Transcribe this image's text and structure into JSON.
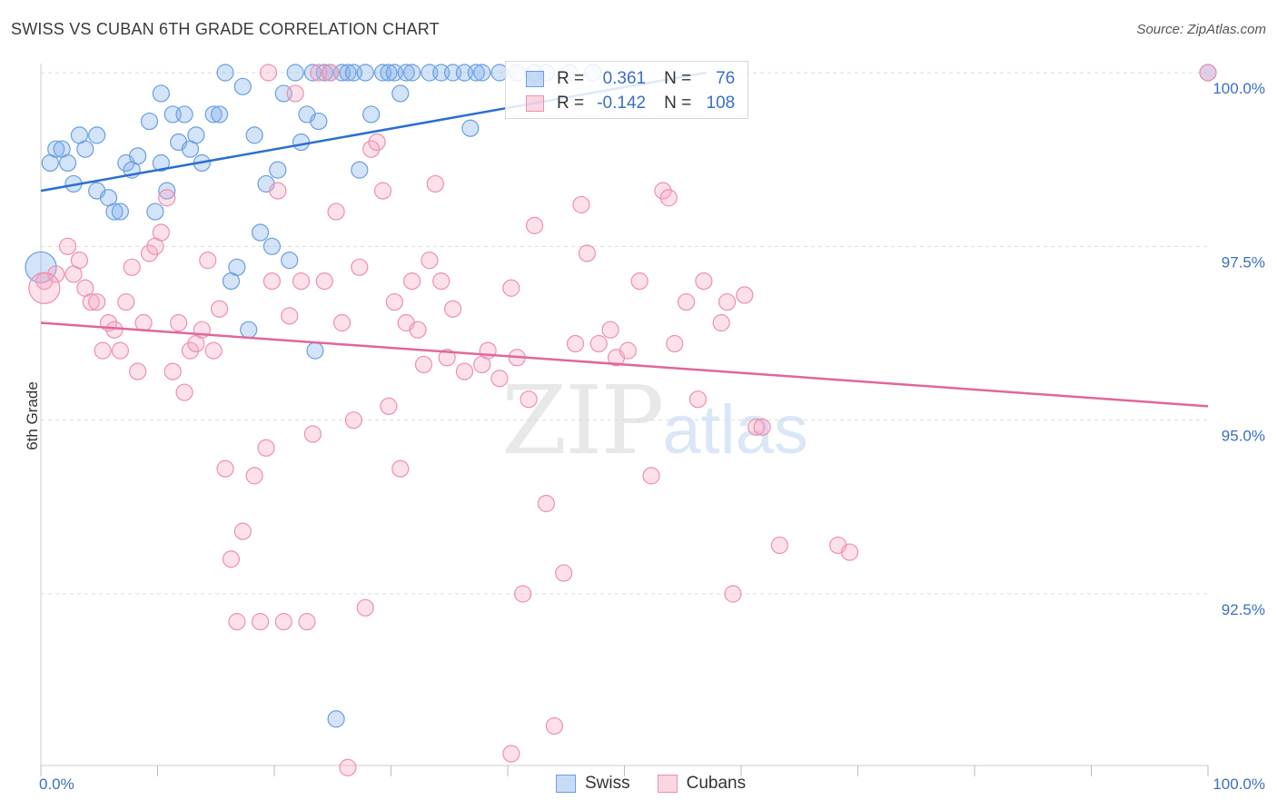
{
  "header": {
    "title": "SWISS VS CUBAN 6TH GRADE CORRELATION CHART",
    "source": "Source: ZipAtlas.com"
  },
  "legend": {
    "swiss": {
      "r_label": "R =",
      "r_value": "0.361",
      "n_label": "N =",
      "n_value": "76"
    },
    "cubans": {
      "r_label": "R =",
      "r_value": "-0.142",
      "n_label": "N =",
      "n_value": "108"
    }
  },
  "bottom_legend": {
    "swiss": "Swiss",
    "cubans": "Cubans"
  },
  "watermark": {
    "zip": "ZIP",
    "atlas": "atlas"
  },
  "colors": {
    "swiss_fill": "rgba(130,175,235,0.35)",
    "swiss_stroke": "#6a9ee0",
    "swiss_line": "#2a6fd0",
    "cubans_fill": "rgba(245,165,195,0.35)",
    "cubans_stroke": "#ee8fb0",
    "cubans_line": "#e0679a",
    "axis_text": "#3a6fc6",
    "grid": "#dddddd"
  },
  "chart_data": {
    "type": "scatter",
    "title": "SWISS VS CUBAN 6TH GRADE CORRELATION CHART",
    "xlabel": "",
    "ylabel": "6th Grade",
    "xlim": [
      0,
      100
    ],
    "ylim": [
      90.0,
      100.3
    ],
    "x_tick_labels": [
      "0.0%",
      "100.0%"
    ],
    "y_ticks": [
      92.5,
      95.0,
      97.5,
      100.0
    ],
    "y_tick_labels": [
      "92.5%",
      "95.0%",
      "97.5%",
      "100.0%"
    ],
    "grid": true,
    "series": [
      {
        "name": "Swiss",
        "trend": {
          "x": [
            0,
            57
          ],
          "y": [
            98.3,
            100.0
          ]
        },
        "points": [
          [
            0.8,
            98.7
          ],
          [
            1.3,
            98.9
          ],
          [
            1.8,
            98.9
          ],
          [
            2.3,
            98.7
          ],
          [
            2.8,
            98.4
          ],
          [
            3.3,
            99.1
          ],
          [
            3.8,
            98.9
          ],
          [
            4.8,
            99.1
          ],
          [
            4.8,
            98.3
          ],
          [
            5.8,
            98.2
          ],
          [
            6.3,
            98.0
          ],
          [
            6.8,
            98.0
          ],
          [
            7.3,
            98.7
          ],
          [
            7.8,
            98.6
          ],
          [
            8.3,
            98.8
          ],
          [
            9.3,
            99.3
          ],
          [
            9.8,
            98.0
          ],
          [
            10.3,
            98.7
          ],
          [
            10.3,
            99.7
          ],
          [
            10.8,
            98.3
          ],
          [
            11.3,
            99.4
          ],
          [
            11.8,
            99.0
          ],
          [
            12.3,
            99.4
          ],
          [
            12.8,
            98.9
          ],
          [
            13.3,
            99.1
          ],
          [
            13.8,
            98.7
          ],
          [
            14.8,
            99.4
          ],
          [
            15.3,
            99.4
          ],
          [
            15.8,
            100.0
          ],
          [
            16.3,
            97.0
          ],
          [
            16.8,
            97.2
          ],
          [
            17.3,
            99.8
          ],
          [
            17.8,
            96.3
          ],
          [
            18.3,
            99.1
          ],
          [
            18.8,
            97.7
          ],
          [
            19.3,
            98.4
          ],
          [
            19.8,
            97.5
          ],
          [
            20.3,
            98.6
          ],
          [
            20.8,
            99.7
          ],
          [
            21.3,
            97.3
          ],
          [
            21.8,
            100.0
          ],
          [
            22.3,
            99.0
          ],
          [
            22.8,
            99.4
          ],
          [
            23.3,
            100.0
          ],
          [
            23.8,
            99.3
          ],
          [
            24.3,
            100.0
          ],
          [
            24.8,
            100.0
          ],
          [
            25.8,
            100.0
          ],
          [
            26.3,
            100.0
          ],
          [
            26.8,
            100.0
          ],
          [
            27.3,
            98.6
          ],
          [
            27.8,
            100.0
          ],
          [
            28.3,
            99.4
          ],
          [
            29.3,
            100.0
          ],
          [
            29.8,
            100.0
          ],
          [
            30.3,
            100.0
          ],
          [
            30.8,
            99.7
          ],
          [
            31.3,
            100.0
          ],
          [
            31.8,
            100.0
          ],
          [
            33.3,
            100.0
          ],
          [
            34.3,
            100.0
          ],
          [
            35.3,
            100.0
          ],
          [
            36.3,
            100.0
          ],
          [
            36.8,
            99.2
          ],
          [
            37.3,
            100.0
          ],
          [
            37.8,
            100.0
          ],
          [
            39.3,
            100.0
          ],
          [
            40.8,
            100.0
          ],
          [
            42.3,
            100.0
          ],
          [
            43.3,
            100.0
          ],
          [
            45.3,
            100.0
          ],
          [
            47.3,
            100.0
          ],
          [
            23.5,
            96.0
          ],
          [
            25.3,
            90.7
          ],
          [
            100.0,
            100.0
          ],
          [
            0.0,
            97.2
          ]
        ]
      },
      {
        "name": "Cubans",
        "trend": {
          "x": [
            0,
            100
          ],
          "y": [
            96.4,
            95.2
          ]
        },
        "points": [
          [
            0.3,
            97.0
          ],
          [
            1.3,
            97.1
          ],
          [
            2.3,
            97.5
          ],
          [
            2.8,
            97.1
          ],
          [
            3.3,
            97.3
          ],
          [
            3.8,
            96.9
          ],
          [
            4.3,
            96.7
          ],
          [
            4.8,
            96.7
          ],
          [
            5.3,
            96.0
          ],
          [
            5.8,
            96.4
          ],
          [
            6.3,
            96.3
          ],
          [
            6.8,
            96.0
          ],
          [
            7.3,
            96.7
          ],
          [
            7.8,
            97.2
          ],
          [
            8.3,
            95.7
          ],
          [
            8.8,
            96.4
          ],
          [
            9.3,
            97.4
          ],
          [
            9.8,
            97.5
          ],
          [
            10.3,
            97.7
          ],
          [
            10.8,
            98.2
          ],
          [
            11.3,
            95.7
          ],
          [
            11.8,
            96.4
          ],
          [
            12.3,
            95.4
          ],
          [
            12.8,
            96.0
          ],
          [
            13.3,
            96.1
          ],
          [
            13.8,
            96.3
          ],
          [
            14.3,
            97.3
          ],
          [
            14.8,
            96.0
          ],
          [
            15.3,
            96.6
          ],
          [
            15.8,
            94.3
          ],
          [
            16.3,
            93.0
          ],
          [
            16.8,
            92.1
          ],
          [
            17.3,
            93.4
          ],
          [
            18.3,
            94.2
          ],
          [
            18.8,
            92.1
          ],
          [
            19.3,
            94.6
          ],
          [
            19.8,
            97.0
          ],
          [
            20.3,
            98.3
          ],
          [
            20.8,
            92.1
          ],
          [
            21.3,
            96.5
          ],
          [
            21.8,
            99.7
          ],
          [
            22.3,
            97.0
          ],
          [
            22.8,
            92.1
          ],
          [
            23.3,
            94.8
          ],
          [
            23.8,
            100.0
          ],
          [
            24.3,
            97.0
          ],
          [
            24.8,
            100.0
          ],
          [
            25.3,
            98.0
          ],
          [
            25.8,
            96.4
          ],
          [
            26.3,
            90.0
          ],
          [
            26.8,
            95.0
          ],
          [
            27.3,
            97.2
          ],
          [
            27.8,
            92.3
          ],
          [
            28.3,
            98.9
          ],
          [
            28.8,
            99.0
          ],
          [
            29.3,
            98.3
          ],
          [
            29.8,
            95.2
          ],
          [
            30.3,
            96.7
          ],
          [
            30.8,
            94.3
          ],
          [
            31.3,
            96.4
          ],
          [
            31.8,
            97.0
          ],
          [
            32.3,
            96.3
          ],
          [
            32.8,
            95.8
          ],
          [
            33.3,
            97.3
          ],
          [
            33.8,
            98.4
          ],
          [
            34.3,
            97.0
          ],
          [
            34.8,
            95.9
          ],
          [
            35.3,
            96.6
          ],
          [
            36.3,
            95.7
          ],
          [
            37.8,
            95.8
          ],
          [
            38.3,
            96.0
          ],
          [
            39.3,
            95.6
          ],
          [
            40.3,
            96.9
          ],
          [
            40.8,
            95.9
          ],
          [
            41.3,
            92.5
          ],
          [
            41.8,
            95.3
          ],
          [
            42.3,
            97.8
          ],
          [
            43.3,
            93.8
          ],
          [
            44.8,
            92.8
          ],
          [
            45.8,
            96.1
          ],
          [
            46.3,
            98.1
          ],
          [
            46.8,
            97.4
          ],
          [
            47.8,
            96.1
          ],
          [
            48.8,
            96.3
          ],
          [
            49.3,
            95.9
          ],
          [
            50.3,
            96.0
          ],
          [
            51.3,
            97.0
          ],
          [
            52.3,
            94.2
          ],
          [
            53.3,
            98.3
          ],
          [
            53.8,
            98.2
          ],
          [
            54.3,
            96.1
          ],
          [
            55.3,
            96.7
          ],
          [
            56.3,
            95.3
          ],
          [
            56.8,
            97.0
          ],
          [
            58.3,
            96.4
          ],
          [
            58.8,
            96.7
          ],
          [
            59.3,
            92.5
          ],
          [
            60.3,
            96.8
          ],
          [
            61.3,
            94.9
          ],
          [
            61.8,
            94.9
          ],
          [
            63.3,
            93.2
          ],
          [
            68.3,
            93.2
          ],
          [
            69.3,
            93.1
          ],
          [
            40.3,
            90.2
          ],
          [
            44.0,
            90.6
          ],
          [
            19.5,
            100.0
          ],
          [
            100.0,
            100.0
          ],
          [
            0.3,
            96.9
          ]
        ]
      }
    ]
  }
}
